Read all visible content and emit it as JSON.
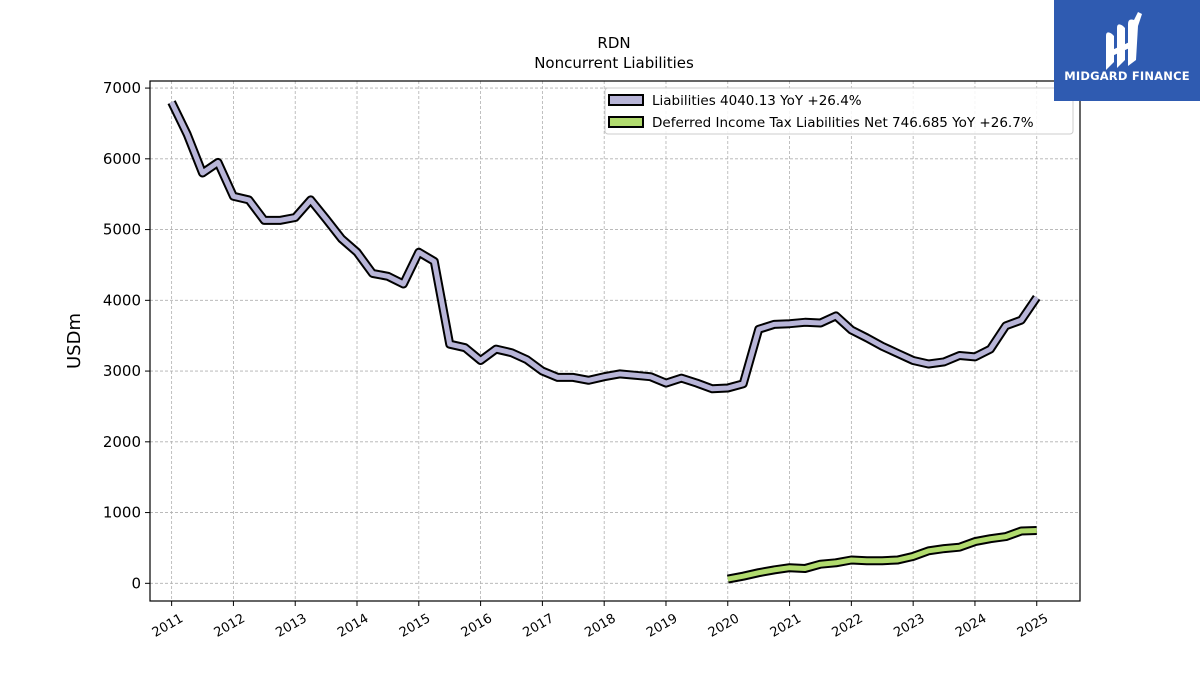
{
  "chart_data": {
    "type": "line",
    "title": "RDN",
    "subtitle": "Noncurrent  Liabilities",
    "ylabel": "USDm",
    "xlabel": "",
    "ylim": [
      -250,
      7100
    ],
    "xlim": [
      2010.65,
      2025.7
    ],
    "yticks": [
      0,
      1000,
      2000,
      3000,
      4000,
      5000,
      6000,
      7000
    ],
    "xticks": [
      "2011",
      "2012",
      "2013",
      "2014",
      "2015",
      "2016",
      "2017",
      "2018",
      "2019",
      "2020",
      "2021",
      "2022",
      "2023",
      "2024",
      "2025"
    ],
    "grid": true,
    "legend_position": "top-right",
    "series": [
      {
        "name": "Liabilities  4040.13 YoY +26.4%",
        "color": "#b8b5d8",
        "x": [
          2011.0,
          2011.25,
          2011.5,
          2011.75,
          2012.0,
          2012.25,
          2012.5,
          2012.75,
          2013.0,
          2013.25,
          2013.5,
          2013.75,
          2014.0,
          2014.25,
          2014.5,
          2014.75,
          2015.0,
          2015.25,
          2015.5,
          2015.75,
          2016.0,
          2016.25,
          2016.5,
          2016.75,
          2017.0,
          2017.25,
          2017.5,
          2017.75,
          2018.0,
          2018.25,
          2018.5,
          2018.75,
          2019.0,
          2019.25,
          2019.5,
          2019.75,
          2020.0,
          2020.25,
          2020.5,
          2020.75,
          2021.0,
          2021.25,
          2021.5,
          2021.75,
          2022.0,
          2022.25,
          2022.5,
          2022.75,
          2023.0,
          2023.25,
          2023.5,
          2023.75,
          2024.0,
          2024.25,
          2024.5,
          2024.75,
          2025.0
        ],
        "values": [
          6800,
          6350,
          5800,
          5950,
          5470,
          5420,
          5130,
          5130,
          5170,
          5420,
          5150,
          4870,
          4680,
          4380,
          4340,
          4230,
          4680,
          4550,
          3380,
          3330,
          3150,
          3310,
          3260,
          3160,
          3000,
          2910,
          2910,
          2870,
          2920,
          2960,
          2940,
          2920,
          2830,
          2900,
          2830,
          2750,
          2760,
          2820,
          3590,
          3660,
          3670,
          3690,
          3680,
          3780,
          3580,
          3470,
          3350,
          3250,
          3150,
          3100,
          3130,
          3220,
          3200,
          3310,
          3640,
          3720,
          4040
        ]
      },
      {
        "name": "Deferred Income Tax Liabilities Net  746.685 YoY +26.7%",
        "color": "#b1db6e",
        "x": [
          2020.0,
          2020.25,
          2020.5,
          2020.75,
          2021.0,
          2021.25,
          2021.5,
          2021.75,
          2022.0,
          2022.25,
          2022.5,
          2022.75,
          2023.0,
          2023.25,
          2023.5,
          2023.75,
          2024.0,
          2024.25,
          2024.5,
          2024.75,
          2025.0
        ],
        "values": [
          60,
          100,
          150,
          190,
          220,
          210,
          270,
          290,
          330,
          320,
          320,
          330,
          380,
          460,
          490,
          510,
          590,
          630,
          660,
          740,
          747
        ]
      }
    ]
  },
  "logo": {
    "brand": "MIDGARD FINANCE",
    "bg_color": "#2f5bb1"
  }
}
